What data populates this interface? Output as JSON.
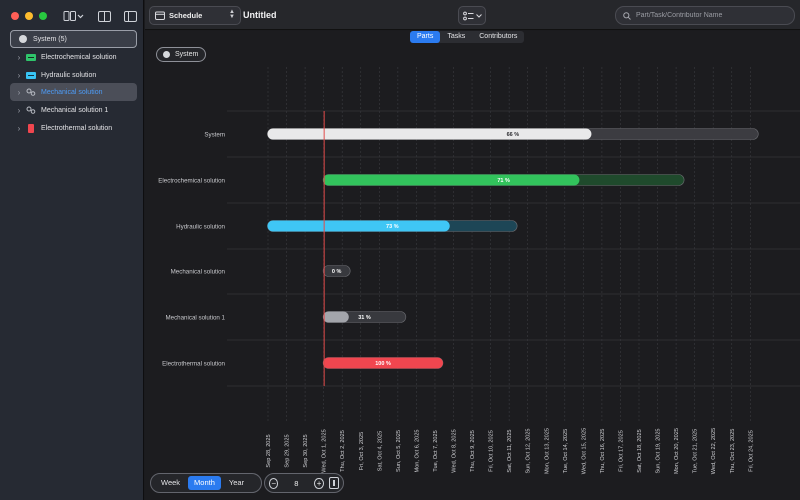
{
  "window": {
    "colors": {
      "close": "#ff5f57",
      "minimize": "#febc2e",
      "maximize": "#28c840"
    }
  },
  "toolbar": {
    "mode": "Schedule",
    "mode_icon": "calendar-icon",
    "title": "Untitled",
    "search_placeholder": "Part/Task/Contributor Name"
  },
  "sidebar": {
    "root": {
      "label": "System (5)"
    },
    "items": [
      {
        "label": "Electrochemical solution",
        "icon": "battery-icon",
        "color": "#2fc56b"
      },
      {
        "label": "Hydraulic solution",
        "icon": "pump-icon",
        "color": "#38c4f4"
      },
      {
        "label": "Mechanical solution",
        "icon": "gears-icon",
        "color": "#b9bcc4",
        "selected": true
      },
      {
        "label": "Mechanical solution 1",
        "icon": "gears-icon",
        "color": "#b9bcc4"
      },
      {
        "label": "Electrothermal solution",
        "icon": "thermal-icon",
        "color": "#f0464f"
      }
    ]
  },
  "tabs": [
    {
      "label": "Parts",
      "active": true
    },
    {
      "label": "Tasks",
      "active": false
    },
    {
      "label": "Contributors",
      "active": false
    }
  ],
  "chip": {
    "label": "System"
  },
  "chart_data": {
    "type": "gantt",
    "dates": [
      "Sep 28, 2025",
      "Sep 29, 2025",
      "Sep 30, 2025",
      "Wed, Oct 1, 2025",
      "Thu, Oct 2, 2025",
      "Fri, Oct 3, 2025",
      "Sat, Oct 4, 2025",
      "Sun, Oct 5, 2025",
      "Mon, Oct 6, 2025",
      "Tue, Oct 7, 2025",
      "Wed, Oct 8, 2025",
      "Thu, Oct 9, 2025",
      "Fri, Oct 10, 2025",
      "Sat, Oct 11, 2025",
      "Sun, Oct 12, 2025",
      "Mon, Oct 13, 2025",
      "Tue, Oct 14, 2025",
      "Wed, Oct 15, 2025",
      "Thu, Oct 16, 2025",
      "Fri, Oct 17, 2025",
      "Sat, Oct 18, 2025",
      "Sun, Oct 19, 2025",
      "Mon, Oct 20, 2025",
      "Tue, Oct 21, 2025",
      "Wed, Oct 22, 2025",
      "Thu, Oct 23, 2025",
      "Fri, Oct 24, 2025"
    ],
    "today": "Wed, Oct 1, 2025",
    "rows": [
      {
        "label": "System",
        "start": "Sep 28, 2025",
        "end": "Fri, Oct 24, 2025",
        "progress": 66,
        "progress_label": "66 %",
        "color": "#e9e9ea",
        "track": "#3c3c41",
        "text_color": "#2a2a2e"
      },
      {
        "label": "Electrochemical solution",
        "start": "Wed, Oct 1, 2025",
        "end": "Mon, Oct 20, 2025",
        "progress": 71,
        "progress_label": "71 %",
        "color": "#32c35c",
        "track": "#1f4a2c",
        "text_color": "#ffffff"
      },
      {
        "label": "Hydraulic solution",
        "start": "Sep 28, 2025",
        "end": "Sat, Oct 11, 2025",
        "progress": 73,
        "progress_label": "73 %",
        "color": "#3fc6f5",
        "track": "#1d4656",
        "text_color": "#ffffff"
      },
      {
        "label": "Mechanical solution",
        "start": "Wed, Oct 1, 2025",
        "end": "Thu, Oct 2, 2025",
        "progress": 0,
        "progress_label": "0 %",
        "color": "#b9bcc4",
        "track": "#38393e",
        "text_color": "#ffffff"
      },
      {
        "label": "Mechanical solution 1",
        "start": "Wed, Oct 1, 2025",
        "end": "Sun, Oct 5, 2025",
        "progress": 31,
        "progress_label": "31 %",
        "color": "#a3a5ab",
        "track": "#38393e",
        "text_color": "#ffffff"
      },
      {
        "label": "Electrothermal solution",
        "start": "Wed, Oct 1, 2025",
        "end": "Tue, Oct 7, 2025",
        "progress": 100,
        "progress_label": "100 %",
        "color": "#f0464f",
        "track": "#5a2226",
        "text_color": "#ffffff"
      }
    ],
    "grid": true
  },
  "bottom": {
    "scales": [
      {
        "label": "Week",
        "active": false
      },
      {
        "label": "Month",
        "active": true
      },
      {
        "label": "Year",
        "active": false
      }
    ],
    "zoom_value": "8",
    "zoom_minus": "−",
    "zoom_plus": "+"
  }
}
